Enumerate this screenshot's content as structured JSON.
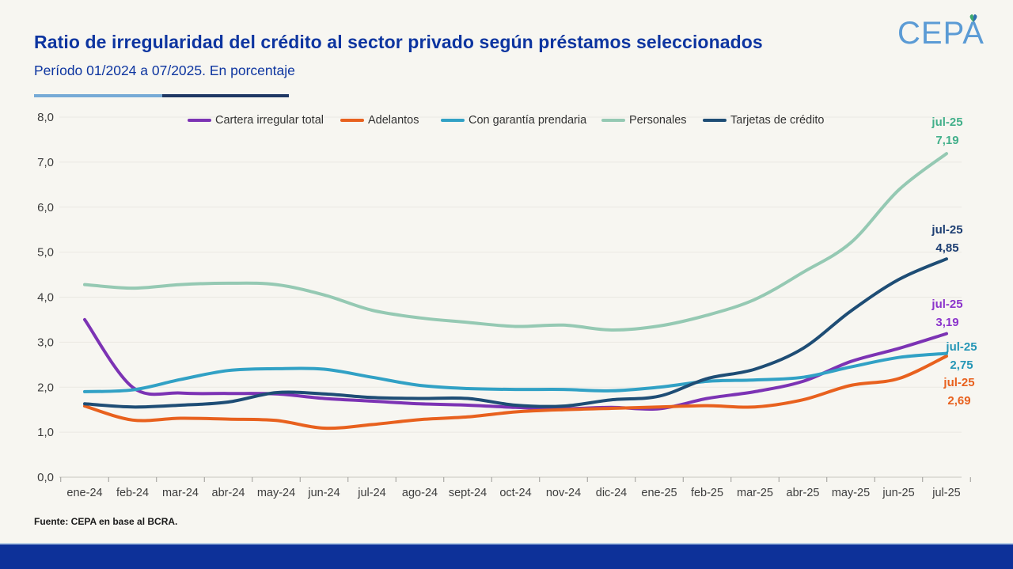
{
  "header": {
    "title": "Ratio de irregularidad del crédito al sector privado según préstamos seleccionados",
    "subtitle": "Período 01/2024 a 07/2025. En porcentaje",
    "logo_text": "CEPA"
  },
  "footer": {
    "source": "Fuente: CEPA en base al BCRA."
  },
  "colors": {
    "title_blue": "#0d35a0",
    "background": "#f7f6f1",
    "gridline": "#eae8e2",
    "axis_text": "#3d3d3d",
    "bottom_bar": "#0d3199",
    "logo_blue": "#5b9bd5",
    "accent_light": "#76aad6",
    "accent_dark": "#1f3864"
  },
  "chart_data": {
    "type": "line",
    "title": "Ratio de irregularidad del crédito al sector privado según préstamos seleccionados",
    "subtitle": "Período 01/2024 a 07/2025. En porcentaje",
    "x_labels": [
      "ene-24",
      "feb-24",
      "mar-24",
      "abr-24",
      "may-24",
      "jun-24",
      "jul-24",
      "ago-24",
      "sept-24",
      "oct-24",
      "nov-24",
      "dic-24",
      "ene-25",
      "feb-25",
      "mar-25",
      "abr-25",
      "may-25",
      "jun-25",
      "jul-25"
    ],
    "y_tick_labels": [
      "0,0",
      "1,0",
      "2,0",
      "3,0",
      "4,0",
      "5,0",
      "6,0",
      "7,0",
      "8,0"
    ],
    "ylim": [
      0,
      8
    ],
    "grid": true,
    "legend_position": "top",
    "series": [
      {
        "name": "Cartera irregular total",
        "color": "#7c33b4",
        "label_color": "#8c35cc",
        "values": [
          3.5,
          2.0,
          1.87,
          1.86,
          1.85,
          1.75,
          1.69,
          1.63,
          1.6,
          1.55,
          1.52,
          1.55,
          1.52,
          1.75,
          1.9,
          2.13,
          2.57,
          2.86,
          3.19
        ],
        "end_label": [
          "jul-25",
          "3,19"
        ]
      },
      {
        "name": "Adelantos",
        "color": "#e8611e",
        "label_color": "#e8611e",
        "values": [
          1.58,
          1.27,
          1.31,
          1.29,
          1.26,
          1.09,
          1.17,
          1.28,
          1.34,
          1.45,
          1.5,
          1.53,
          1.56,
          1.59,
          1.56,
          1.72,
          2.04,
          2.19,
          2.69
        ],
        "end_label": [
          "jul-25",
          "2,69"
        ]
      },
      {
        "name": "Con garantía prendaria",
        "color": "#31a1c5",
        "label_color": "#2596b6",
        "values": [
          1.9,
          1.94,
          2.17,
          2.37,
          2.41,
          2.4,
          2.22,
          2.04,
          1.97,
          1.95,
          1.95,
          1.92,
          2.0,
          2.13,
          2.16,
          2.22,
          2.45,
          2.66,
          2.75
        ],
        "end_label": [
          "jul-25",
          "2,75"
        ]
      },
      {
        "name": "Personales",
        "color": "#95c9b3",
        "label_color": "#43b08b",
        "values": [
          4.28,
          4.2,
          4.28,
          4.31,
          4.28,
          4.05,
          3.71,
          3.54,
          3.44,
          3.35,
          3.38,
          3.27,
          3.36,
          3.6,
          3.95,
          4.55,
          5.21,
          6.38,
          7.19
        ],
        "end_label": [
          "jul-25",
          "7,19"
        ]
      },
      {
        "name": "Tarjetas de crédito",
        "color": "#1e4d75",
        "label_color": "#1e3f73",
        "values": [
          1.63,
          1.56,
          1.6,
          1.67,
          1.88,
          1.85,
          1.77,
          1.75,
          1.75,
          1.6,
          1.58,
          1.72,
          1.8,
          2.19,
          2.4,
          2.86,
          3.69,
          4.39,
          4.85
        ],
        "end_label": [
          "jul-25",
          "4,85"
        ]
      }
    ]
  }
}
